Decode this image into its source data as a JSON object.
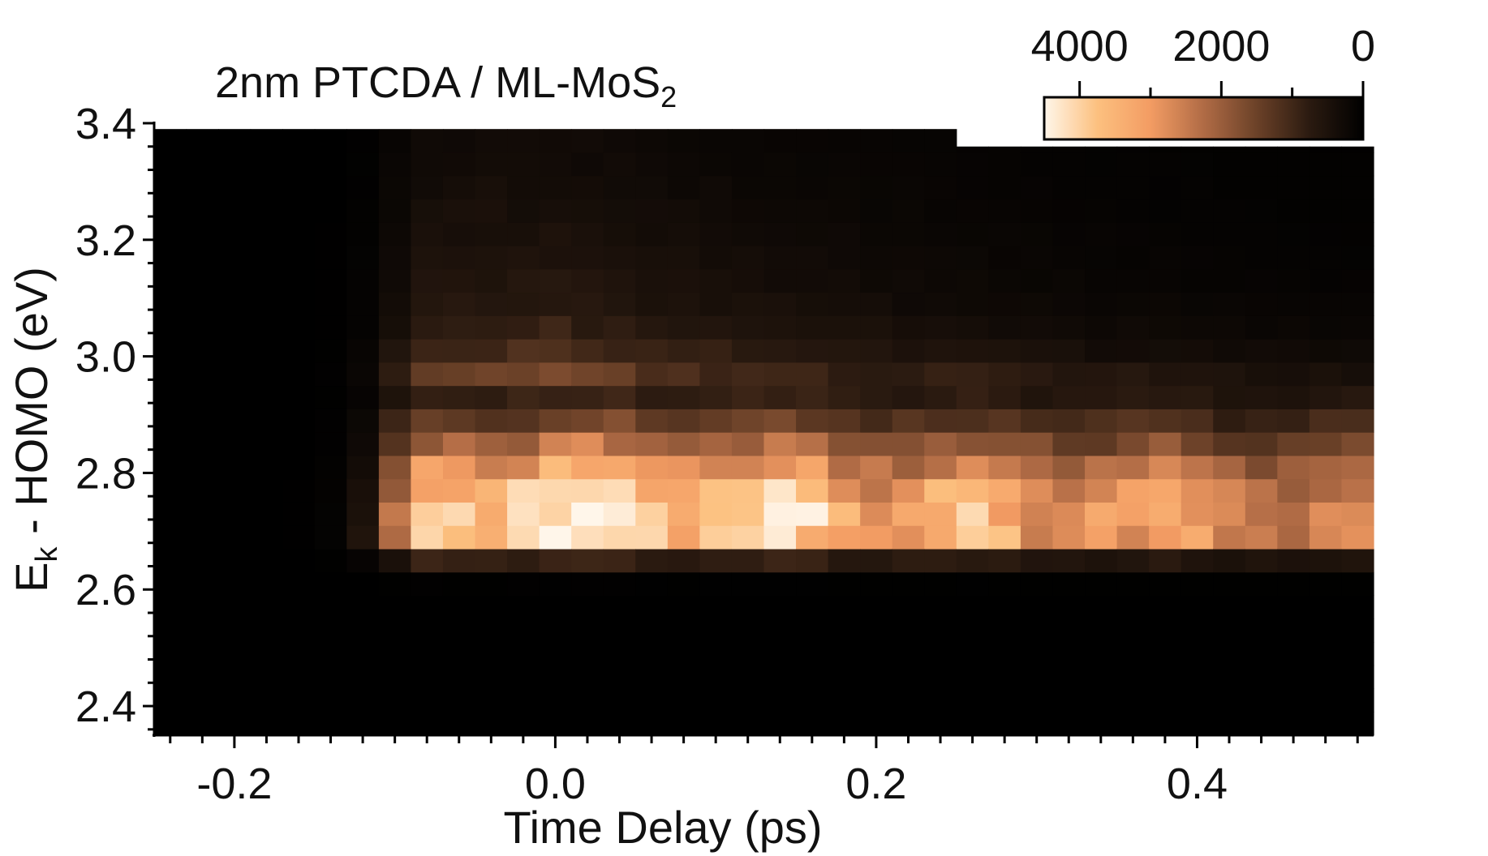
{
  "chart_data": {
    "type": "heatmap",
    "title_main": "2nm PTCDA / ML-MoS",
    "title_sub": "2",
    "xlabel": "Time Delay (ps)",
    "ylabel_main": "E",
    "ylabel_sub": "k",
    "ylabel_rest": " -  HOMO (eV)",
    "xlim": [
      -0.25,
      0.51
    ],
    "ylim": [
      2.35,
      3.4
    ],
    "x_ticks": [
      -0.2,
      0.0,
      0.2,
      0.4
    ],
    "x_tick_labels": [
      "-0.2",
      "0.0",
      "0.2",
      "0.4"
    ],
    "y_ticks": [
      2.4,
      2.6,
      2.8,
      3.0,
      3.2,
      3.4
    ],
    "y_tick_labels": [
      "2.4",
      "2.6",
      "2.8",
      "3.0",
      "3.2",
      "3.4"
    ],
    "colorbar": {
      "min": 0,
      "max": 4500,
      "tick_values": [
        4000,
        2000,
        0
      ],
      "tick_labels": [
        "4000",
        "2000",
        "0"
      ],
      "reversed": true
    },
    "colormap": [
      "#000000",
      "#2a1a10",
      "#6b4128",
      "#b06b45",
      "#f39c63",
      "#fcc07f",
      "#fff6ea"
    ],
    "cutoffs": [
      {
        "x": 0.25,
        "y": 3.4
      },
      {
        "x": 0.51,
        "y": 3.36
      }
    ],
    "rise_time_ps": -0.1,
    "peak_energy_eV": 2.67,
    "peak_intensity": 4500,
    "intensity_samples": [
      {
        "x": 0.02,
        "y": 2.67,
        "value": 4500
      },
      {
        "x": 0.12,
        "y": 2.67,
        "value": 4400
      },
      {
        "x": 0.16,
        "y": 2.67,
        "value": 4400
      },
      {
        "x": 0.24,
        "y": 2.65,
        "value": 4000
      },
      {
        "x": 0.4,
        "y": 2.7,
        "value": 3200
      },
      {
        "x": 0.05,
        "y": 3.1,
        "value": 1000
      },
      {
        "x": -0.2,
        "y": 2.8,
        "value": 0
      }
    ]
  }
}
